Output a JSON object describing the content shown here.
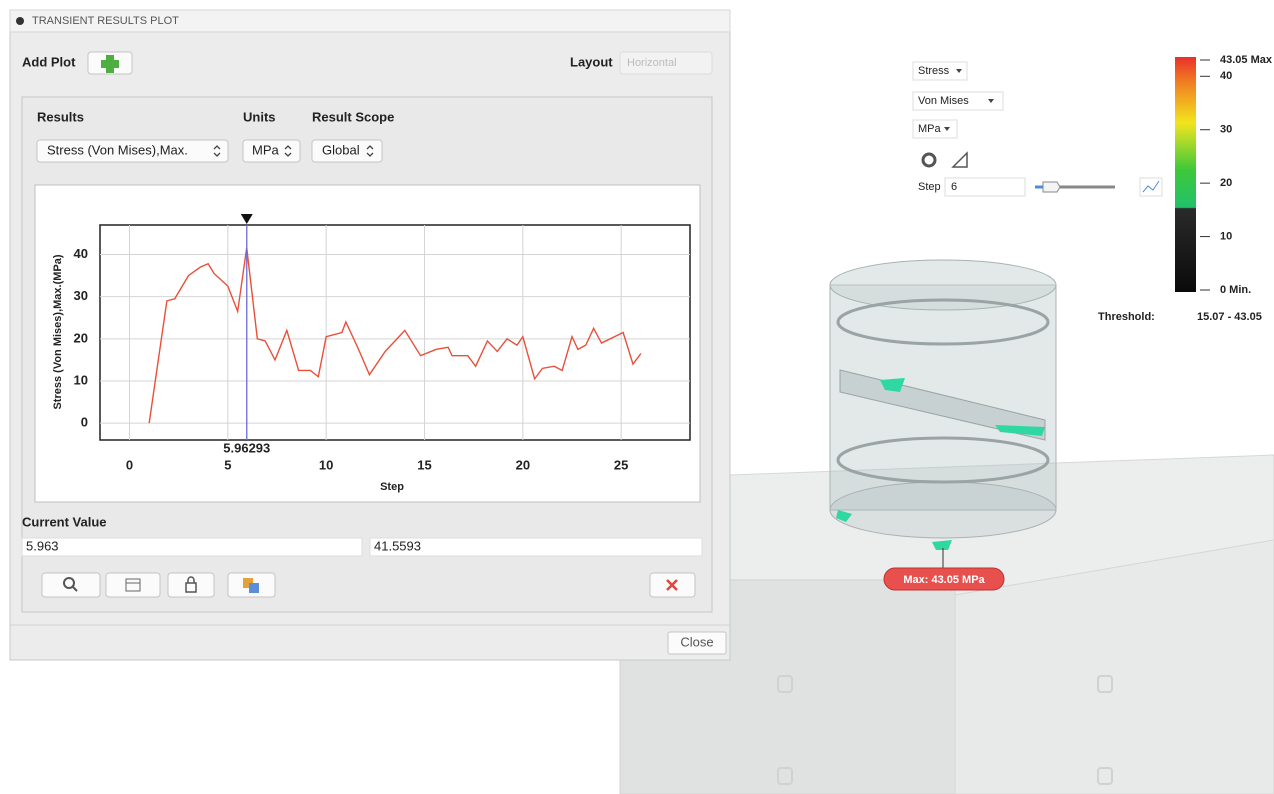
{
  "dialog": {
    "title": "TRANSIENT RESULTS PLOT",
    "add_plot": "Add Plot",
    "layout_label": "Layout",
    "layout_value": "Horizontal",
    "results_label": "Results",
    "units_label": "Units",
    "scope_label": "Result Scope",
    "results_value": "Stress (Von Mises),Max.",
    "units_value": "MPa",
    "scope_value": "Global",
    "current_value_label": "Current Value",
    "current_x": "5.963",
    "current_y": "41.5593",
    "close": "Close"
  },
  "chart_data": {
    "type": "line",
    "x_label": "Step",
    "y_label": "Stress (Von Mises),Max.(MPa)",
    "x": [
      1,
      1.9,
      2.3,
      3,
      3.6,
      4,
      4.3,
      5,
      5.5,
      5.96,
      6.5,
      6.9,
      7.4,
      8,
      8.6,
      9.2,
      9.6,
      10,
      10.8,
      11,
      11.6,
      12.2,
      13,
      14,
      14.8,
      15.6,
      16.2,
      16.4,
      17.2,
      17.6,
      18.2,
      18.7,
      19.2,
      19.7,
      20,
      20.6,
      21,
      21.6,
      22,
      22.5,
      22.8,
      23.2,
      23.6,
      24,
      25.1,
      25.6,
      26
    ],
    "series": [
      {
        "name": "Stress (Von Mises),Max.",
        "color": "#e8503a",
        "values": [
          0,
          29,
          29.5,
          35,
          37,
          37.8,
          35.5,
          32.5,
          26.5,
          41.6,
          20,
          19.5,
          15,
          22,
          12.5,
          12.5,
          11,
          20.5,
          21.5,
          24,
          18,
          11.5,
          17,
          22,
          16,
          17.5,
          18,
          16,
          16,
          13.5,
          19.5,
          17,
          20,
          18.5,
          20.5,
          10.5,
          13,
          13.5,
          12.5,
          20.5,
          17.5,
          18.5,
          22.5,
          19,
          21.5,
          14,
          16.5
        ]
      }
    ],
    "xlim": [
      -1.5,
      28.5
    ],
    "ylim": [
      -4,
      47
    ],
    "xticks": [
      0,
      5,
      10,
      15,
      20,
      25
    ],
    "yticks": [
      0,
      10,
      20,
      30,
      40
    ],
    "grid": true,
    "cursor": 5.96293
  },
  "viewer": {
    "result_type": "Stress",
    "component": "Von Mises",
    "units": "MPa",
    "step_label": "Step",
    "step_value": "6",
    "legend_ticks": [
      {
        "value": 43.05,
        "label": "43.05 Max"
      },
      40,
      30,
      20,
      10,
      {
        "value": 0,
        "label": "0 Min."
      }
    ],
    "threshold_label": "Threshold:",
    "threshold_value": "15.07 - 43.05",
    "max_label": "Max: 43.05 MPa"
  }
}
